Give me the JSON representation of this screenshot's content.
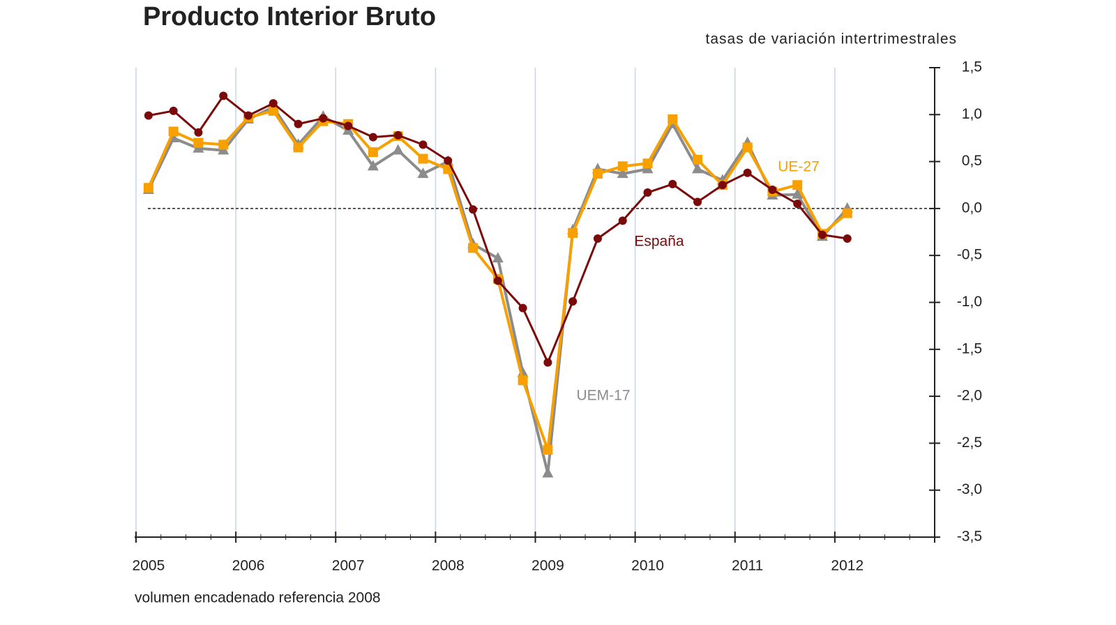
{
  "chart_data": {
    "type": "line",
    "title": "Producto Interior Bruto",
    "subtitle": "tasas de variación intertrimestrales",
    "footnote": "volumen encadenado referencia 2008",
    "categories": [
      "2005",
      null,
      null,
      null,
      "2006",
      null,
      null,
      null,
      "2007",
      null,
      null,
      null,
      "2008",
      null,
      null,
      null,
      "2009",
      null,
      null,
      null,
      "2010",
      null,
      null,
      null,
      "2011",
      null,
      null,
      null,
      "2012",
      null,
      null,
      null
    ],
    "series": [
      {
        "name": "España",
        "color": "#7b0a0a",
        "marker": "circle",
        "values": [
          0.99,
          1.04,
          0.81,
          1.2,
          0.99,
          1.12,
          0.9,
          0.96,
          0.88,
          0.76,
          0.78,
          0.68,
          0.51,
          -0.01,
          -0.77,
          -1.06,
          -1.64,
          -0.99,
          -0.32,
          -0.13,
          0.17,
          0.26,
          0.07,
          0.25,
          0.38,
          0.2,
          0.05,
          -0.28,
          -0.32,
          null,
          null,
          null
        ]
      },
      {
        "name": "UE-27",
        "color": "#f7a000",
        "marker": "square",
        "values": [
          0.22,
          0.82,
          0.7,
          0.68,
          0.97,
          1.04,
          0.65,
          0.93,
          0.9,
          0.6,
          0.77,
          0.53,
          0.42,
          -0.42,
          -0.75,
          -1.83,
          -2.57,
          -0.26,
          0.37,
          0.45,
          0.48,
          0.95,
          0.52,
          0.25,
          0.65,
          0.18,
          0.25,
          -0.27,
          -0.05,
          null,
          null,
          null
        ]
      },
      {
        "name": "UEM-17",
        "color": "#8c8c8c",
        "marker": "triangle",
        "values": [
          0.2,
          0.75,
          0.64,
          0.62,
          0.95,
          1.08,
          0.68,
          0.98,
          0.83,
          0.45,
          0.62,
          0.37,
          0.5,
          -0.38,
          -0.53,
          -1.75,
          -2.82,
          -0.23,
          0.42,
          0.37,
          0.42,
          0.9,
          0.42,
          0.3,
          0.7,
          0.14,
          0.15,
          -0.3,
          0.0,
          null,
          null,
          null
        ]
      }
    ],
    "ylim": [
      -3.5,
      1.5
    ],
    "yticks": [
      {
        "value": -3.5,
        "label": "-3,5"
      },
      {
        "value": -3,
        "label": "-3,0"
      },
      {
        "value": -2.5,
        "label": "-2,5"
      },
      {
        "value": -2,
        "label": "-2,0"
      },
      {
        "value": -1.5,
        "label": "-1,5"
      },
      {
        "value": -1,
        "label": "-1,0"
      },
      {
        "value": -0.5,
        "label": "-0,5"
      },
      {
        "value": 0,
        "label": "0,0"
      },
      {
        "value": 0.5,
        "label": "0,5"
      },
      {
        "value": 1,
        "label": "1,0"
      },
      {
        "value": 1.5,
        "label": "1,5"
      }
    ],
    "grid": true
  }
}
